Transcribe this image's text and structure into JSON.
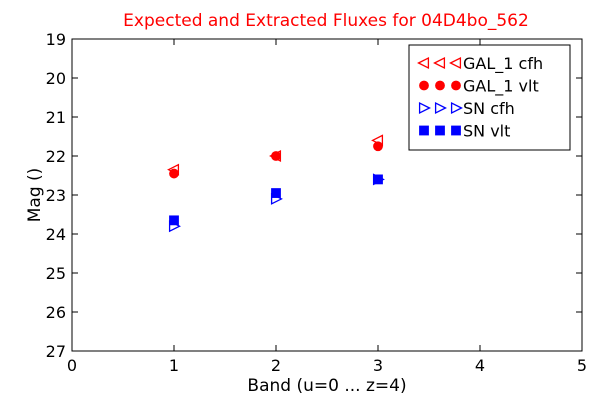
{
  "chart_data": {
    "type": "scatter",
    "title": "Expected and Extracted Fluxes for 04D4bo_562",
    "xlabel": "Band (u=0 ... z=4)",
    "ylabel": "Mag ()",
    "xlim": [
      0,
      5
    ],
    "ylim": [
      27,
      19
    ],
    "y_inverted": true,
    "xticks": [
      "0",
      "1",
      "2",
      "3",
      "4",
      "5"
    ],
    "yticks": [
      "19",
      "20",
      "21",
      "22",
      "23",
      "24",
      "25",
      "26",
      "27"
    ],
    "grid": false,
    "legend_position": "top-right",
    "series": [
      {
        "name": "GAL_1 cfh",
        "marker": "triangle-left-open",
        "color": "#ff0000",
        "x": [
          1,
          2,
          3
        ],
        "y": [
          22.35,
          22.0,
          21.6
        ]
      },
      {
        "name": "GAL_1 vlt",
        "marker": "circle-filled",
        "color": "#ff0000",
        "x": [
          1,
          2,
          3
        ],
        "y": [
          22.45,
          22.0,
          21.75
        ]
      },
      {
        "name": "SN cfh",
        "marker": "triangle-right-open",
        "color": "#0000ff",
        "x": [
          1,
          2,
          3
        ],
        "y": [
          23.8,
          23.1,
          22.6
        ]
      },
      {
        "name": "SN vlt",
        "marker": "square-filled",
        "color": "#0000ff",
        "x": [
          1,
          2,
          3
        ],
        "y": [
          23.65,
          22.95,
          22.6
        ]
      }
    ]
  }
}
